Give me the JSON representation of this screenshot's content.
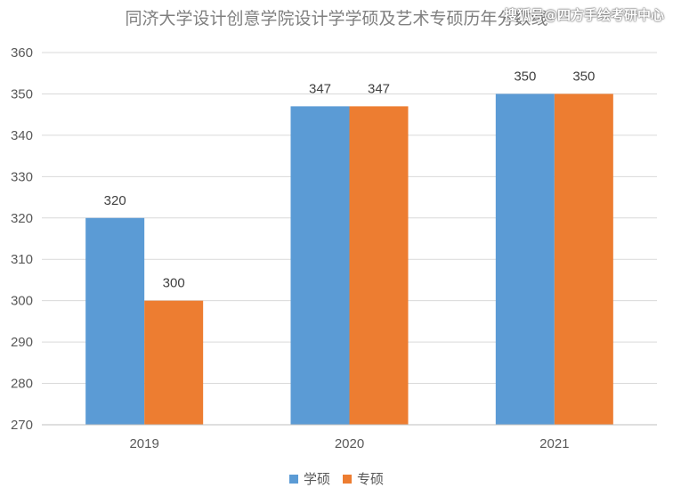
{
  "watermark": "搜狐号@四方手绘考研中心",
  "chart_data": {
    "type": "bar",
    "title": "同济大学设计创意学院设计学学硕及艺术专硕历年分数线",
    "categories": [
      "2019",
      "2020",
      "2021"
    ],
    "series": [
      {
        "name": "学硕",
        "values": [
          320,
          347,
          350
        ],
        "color": "#5b9bd5"
      },
      {
        "name": "专硕",
        "values": [
          300,
          347,
          350
        ],
        "color": "#ed7d31"
      }
    ],
    "ylim": [
      270,
      360
    ],
    "yticks": [
      270,
      280,
      290,
      300,
      310,
      320,
      330,
      340,
      350,
      360
    ],
    "grid": true,
    "legend": "bottom",
    "xlabel": "",
    "ylabel": ""
  }
}
